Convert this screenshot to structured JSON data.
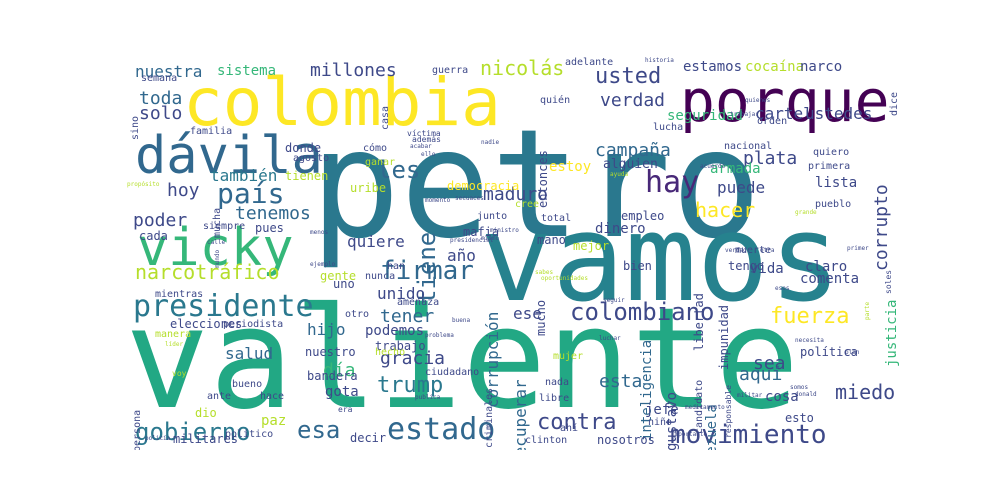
{
  "palette": {
    "dark_purple": "#440154",
    "purple": "#482878",
    "indigo": "#3e4989",
    "blue": "#31688e",
    "teal": "#26828e",
    "green_teal": "#1f9e89",
    "green": "#35b779",
    "light_green": "#6ece58",
    "lime": "#b5de2b",
    "yellow": "#fde725"
  },
  "words": [
    {
      "text": "petro",
      "color": "#2a788e"
    },
    {
      "text": "valiente",
      "color": "#22a884"
    },
    {
      "text": "vamos",
      "color": "#26828e"
    },
    {
      "text": "colombia",
      "color": "#fde725"
    },
    {
      "text": "porque",
      "color": "#440154"
    },
    {
      "text": "dávila",
      "color": "#31688e"
    },
    {
      "text": "vicky",
      "color": "#35b779"
    },
    {
      "text": "presidente",
      "color": "#2a788e"
    },
    {
      "text": "movimiento",
      "color": "#3e4989"
    },
    {
      "text": "estado",
      "color": "#31688e"
    },
    {
      "text": "firmar",
      "color": "#31688e"
    },
    {
      "text": "colombiano",
      "color": "#3e4989"
    },
    {
      "text": "gobierno",
      "color": "#2a788e"
    },
    {
      "text": "hay",
      "color": "#482878"
    },
    {
      "text": "país",
      "color": "#31688e"
    },
    {
      "text": "narcotráfico",
      "color": "#b5de2b"
    },
    {
      "text": "usted",
      "color": "#3e4989"
    },
    {
      "text": "nicolás",
      "color": "#b5de2b"
    },
    {
      "text": "trump",
      "color": "#2a788e"
    },
    {
      "text": "contra",
      "color": "#3e4989"
    },
    {
      "text": "fuerza",
      "color": "#fde725"
    },
    {
      "text": "esa",
      "color": "#31688e"
    },
    {
      "text": "tiene",
      "color": "#31688e"
    },
    {
      "text": "les",
      "color": "#31688e"
    },
    {
      "text": "corrupto",
      "color": "#3e4989"
    },
    {
      "text": "hacer",
      "color": "#fde725"
    },
    {
      "text": "miedo",
      "color": "#3e4989"
    },
    {
      "text": "millones",
      "color": "#3e4989"
    },
    {
      "text": "verdad",
      "color": "#3e4989"
    },
    {
      "text": "campaña",
      "color": "#31688e"
    },
    {
      "text": "maduro",
      "color": "#3e4989"
    },
    {
      "text": "tenemos",
      "color": "#31688e"
    },
    {
      "text": "poder",
      "color": "#3e4989"
    },
    {
      "text": "hoy",
      "color": "#3e4989"
    },
    {
      "text": "también",
      "color": "#2a788e"
    },
    {
      "text": "solo",
      "color": "#3e4989"
    },
    {
      "text": "toda",
      "color": "#31688e"
    },
    {
      "text": "nuestra",
      "color": "#31688e"
    },
    {
      "text": "sistema",
      "color": "#35b779"
    },
    {
      "text": "plata",
      "color": "#3e4989"
    },
    {
      "text": "puede",
      "color": "#3e4989"
    },
    {
      "text": "tener",
      "color": "#31688e"
    },
    {
      "text": "unido",
      "color": "#3e4989"
    },
    {
      "text": "gracia",
      "color": "#3e4989"
    },
    {
      "text": "día",
      "color": "#35b779"
    },
    {
      "text": "hijo",
      "color": "#31688e"
    },
    {
      "text": "salud",
      "color": "#31688e"
    },
    {
      "text": "quiere",
      "color": "#3e4989"
    },
    {
      "text": "año",
      "color": "#3e4989"
    },
    {
      "text": "ese",
      "color": "#3e4989"
    },
    {
      "text": "sea",
      "color": "#3e4989"
    },
    {
      "text": "aquí",
      "color": "#31688e"
    },
    {
      "text": "esta",
      "color": "#31688e"
    },
    {
      "text": "corrupción",
      "color": "#31688e"
    },
    {
      "text": "recuperar",
      "color": "#31688e"
    },
    {
      "text": "cartel",
      "color": "#3e4989"
    },
    {
      "text": "ustedes",
      "color": "#3e4989"
    },
    {
      "text": "seguridad",
      "color": "#35b779"
    },
    {
      "text": "estamos",
      "color": "#3e4989"
    },
    {
      "text": "cocaína",
      "color": "#b5de2b"
    },
    {
      "text": "narco",
      "color": "#3e4989"
    },
    {
      "text": "armada",
      "color": "#35b779"
    },
    {
      "text": "lista",
      "color": "#3e4989"
    },
    {
      "text": "justicia",
      "color": "#35b779"
    },
    {
      "text": "comenta",
      "color": "#3e4989"
    },
    {
      "text": "vida",
      "color": "#3e4989"
    },
    {
      "text": "claro",
      "color": "#3e4989"
    },
    {
      "text": "gustavo",
      "color": "#3e4989"
    },
    {
      "text": "inteligencia",
      "color": "#31688e"
    },
    {
      "text": "venezuela",
      "color": "#31688e"
    },
    {
      "text": "cosa",
      "color": "#3e4989"
    },
    {
      "text": "jefe",
      "color": "#3e4989"
    },
    {
      "text": "paz",
      "color": "#b5de2b"
    },
    {
      "text": "gota",
      "color": "#3e4989"
    },
    {
      "text": "bandera",
      "color": "#3e4989"
    },
    {
      "text": "elecciones",
      "color": "#3e4989"
    },
    {
      "text": "podemos",
      "color": "#3e4989"
    },
    {
      "text": "trabajo",
      "color": "#3e4989"
    },
    {
      "text": "nuestro",
      "color": "#3e4989"
    },
    {
      "text": "mano",
      "color": "#3e4989"
    },
    {
      "text": "dinero",
      "color": "#3e4989"
    },
    {
      "text": "uribe",
      "color": "#b5de2b"
    },
    {
      "text": "tienen",
      "color": "#b5de2b"
    },
    {
      "text": "donde",
      "color": "#3e4989"
    },
    {
      "text": "entonces",
      "color": "#3e4989"
    },
    {
      "text": "estoy",
      "color": "#fde725"
    },
    {
      "text": "alguien",
      "color": "#3e4989"
    },
    {
      "text": "democracia",
      "color": "#fde725"
    },
    {
      "text": "mafia",
      "color": "#3e4989"
    },
    {
      "text": "empleo",
      "color": "#3e4989"
    },
    {
      "text": "mucho",
      "color": "#3e4989"
    },
    {
      "text": "bien",
      "color": "#3e4989"
    },
    {
      "text": "mejor",
      "color": "#b5de2b"
    },
    {
      "text": "libertad",
      "color": "#3e4989"
    },
    {
      "text": "impunidad",
      "color": "#3e4989"
    },
    {
      "text": "tengo",
      "color": "#3e4989"
    },
    {
      "text": "política",
      "color": "#3e4989"
    },
    {
      "text": "esto",
      "color": "#3e4989"
    },
    {
      "text": "nosotros",
      "color": "#3e4989"
    },
    {
      "text": "decir",
      "color": "#3e4989"
    },
    {
      "text": "militares",
      "color": "#3e4989"
    },
    {
      "text": "político",
      "color": "#3e4989"
    },
    {
      "text": "dio",
      "color": "#b5de2b"
    },
    {
      "text": "hace",
      "color": "#3e4989"
    },
    {
      "text": "bueno",
      "color": "#3e4989"
    },
    {
      "text": "persona",
      "color": "#3e4989"
    },
    {
      "text": "ante",
      "color": "#3e4989"
    },
    {
      "text": "cada",
      "color": "#3e4989"
    },
    {
      "text": "siempre",
      "color": "#3e4989"
    },
    {
      "text": "pues",
      "color": "#3e4989"
    },
    {
      "text": "nunca",
      "color": "#3e4989"
    },
    {
      "text": "gente",
      "color": "#b5de2b"
    },
    {
      "text": "uno",
      "color": "#3e4989"
    },
    {
      "text": "amenaza",
      "color": "#3e4989"
    },
    {
      "text": "han",
      "color": "#3e4989"
    },
    {
      "text": "otro",
      "color": "#3e4989"
    },
    {
      "text": "hecho",
      "color": "#b5de2b"
    },
    {
      "text": "nada",
      "color": "#3e4989"
    },
    {
      "text": "libre",
      "color": "#3e4989"
    },
    {
      "text": "niño",
      "color": "#3e4989"
    },
    {
      "text": "ciudadano",
      "color": "#3e4989"
    },
    {
      "text": "criminales",
      "color": "#3e4989"
    },
    {
      "text": "mujer",
      "color": "#b5de2b"
    },
    {
      "text": "candidato",
      "color": "#3e4989"
    },
    {
      "text": "responsable",
      "color": "#3e4989"
    },
    {
      "text": "total",
      "color": "#3e4989"
    },
    {
      "text": "cree",
      "color": "#b5de2b"
    },
    {
      "text": "junto",
      "color": "#3e4989"
    },
    {
      "text": "cómo",
      "color": "#3e4989"
    },
    {
      "text": "ganar",
      "color": "#b5de2b"
    },
    {
      "text": "además",
      "color": "#3e4989"
    },
    {
      "text": "víctima",
      "color": "#3e4989"
    },
    {
      "text": "agosto",
      "color": "#3e4989"
    },
    {
      "text": "mucha",
      "color": "#3e4989"
    },
    {
      "text": "familia",
      "color": "#3e4989"
    },
    {
      "text": "semana",
      "color": "#3e4989"
    },
    {
      "text": "casa",
      "color": "#3e4989"
    },
    {
      "text": "guerra",
      "color": "#3e4989"
    },
    {
      "text": "quién",
      "color": "#3e4989"
    },
    {
      "text": "adelante",
      "color": "#3e4989"
    },
    {
      "text": "lucha",
      "color": "#3e4989"
    },
    {
      "text": "orden",
      "color": "#3e4989"
    },
    {
      "text": "nacional",
      "color": "#3e4989"
    },
    {
      "text": "primera",
      "color": "#3e4989"
    },
    {
      "text": "quiero",
      "color": "#3e4989"
    },
    {
      "text": "pueblo",
      "color": "#3e4989"
    },
    {
      "text": "muerte",
      "color": "#3e4989"
    },
    {
      "text": "dice",
      "color": "#3e4989"
    },
    {
      "text": "sino",
      "color": "#3e4989"
    },
    {
      "text": "mientras",
      "color": "#3e4989"
    },
    {
      "text": "ahí",
      "color": "#3e4989"
    },
    {
      "text": "clinton",
      "color": "#3e4989"
    },
    {
      "text": "periodista",
      "color": "#3e4989"
    },
    {
      "text": "manera",
      "color": "#b5de2b"
    },
    {
      "text": "historia",
      "color": "#3e4989"
    },
    {
      "text": "trabajar",
      "color": "#3e4989"
    },
    {
      "text": "acabar",
      "color": "#3e4989"
    },
    {
      "text": "nadie",
      "color": "#3e4989"
    },
    {
      "text": "ministro",
      "color": "#3e4989"
    },
    {
      "text": "presidencial",
      "color": "#3e4989"
    },
    {
      "text": "problema",
      "color": "#3e4989"
    },
    {
      "text": "publica",
      "color": "#3e4989"
    },
    {
      "text": "militar",
      "color": "#3e4989"
    },
    {
      "text": "donald",
      "color": "#3e4989"
    },
    {
      "text": "plan",
      "color": "#3e4989"
    },
    {
      "text": "primer",
      "color": "#3e4989"
    },
    {
      "text": "grande",
      "color": "#b5de2b"
    },
    {
      "text": "necesita",
      "color": "#3e4989"
    },
    {
      "text": "ejemplo",
      "color": "#3e4989"
    },
    {
      "text": "calle",
      "color": "#3e4989"
    },
    {
      "text": "menos",
      "color": "#3e4989"
    },
    {
      "text": "mundo",
      "color": "#3e4989"
    },
    {
      "text": "buena",
      "color": "#3e4989"
    },
    {
      "text": "luchar",
      "color": "#3e4989"
    },
    {
      "text": "seguir",
      "color": "#3e4989"
    },
    {
      "text": "voy",
      "color": "#b5de2b"
    },
    {
      "text": "líder",
      "color": "#b5de2b"
    },
    {
      "text": "era",
      "color": "#3e4989"
    },
    {
      "text": "oportunidades",
      "color": "#b5de2b"
    },
    {
      "text": "medicamento",
      "color": "#3e4989"
    },
    {
      "text": "importante",
      "color": "#3e4989"
    },
    {
      "text": "policía",
      "color": "#3e4989"
    },
    {
      "text": "parte",
      "color": "#b5de2b"
    },
    {
      "text": "soles",
      "color": "#3e4989"
    },
    {
      "text": "ello",
      "color": "#3e4989"
    },
    {
      "text": "quienes",
      "color": "#3e4989"
    },
    {
      "text": "acuerdo",
      "color": "#3e4989"
    },
    {
      "text": "sabes",
      "color": "#b5de2b"
    },
    {
      "text": "ayuda",
      "color": "#b5de2b"
    },
    {
      "text": "verdad",
      "color": "#3e4989"
    },
    {
      "text": "somos",
      "color": "#3e4989"
    },
    {
      "text": "otra",
      "color": "#3e4989"
    },
    {
      "text": "esos",
      "color": "#3e4989"
    },
    {
      "text": "secuaces",
      "color": "#3e4989"
    },
    {
      "text": "momento",
      "color": "#3e4989"
    },
    {
      "text": "mismo",
      "color": "#3e4989"
    },
    {
      "text": "propósito",
      "color": "#b5de2b"
    }
  ]
}
